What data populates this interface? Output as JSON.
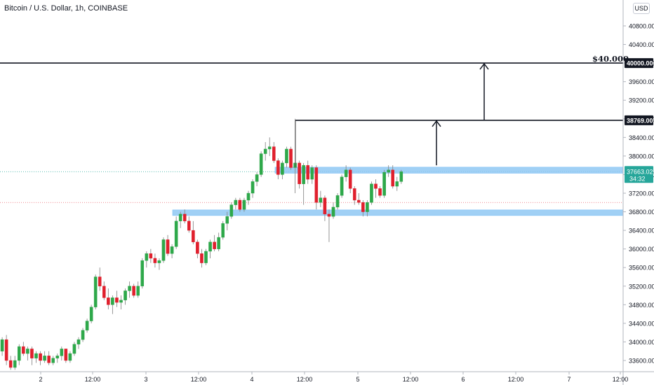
{
  "title": "Bitcoin / U.S. Dollar, 1h, COINBASE",
  "currency": "USD",
  "target_label": "$40.000",
  "price_labels": {
    "target": "40000.00",
    "breakout": "38769.00",
    "last": "37663.02",
    "countdown": "34:32"
  },
  "colors": {
    "up": "#26a69a",
    "up_body": "#2ea84a",
    "down": "#e0202d",
    "zone": "#90c8f4",
    "zone_border": "#64b5f6",
    "line": "#131722",
    "grid_text": "#131722"
  },
  "chart_data": {
    "type": "candlestick",
    "title": "Bitcoin / U.S. Dollar, 1h, COINBASE",
    "ylim": [
      33400,
      41600
    ],
    "y_ticks": [
      33600,
      34000,
      34400,
      34800,
      35200,
      35600,
      36000,
      36400,
      36800,
      37200,
      37600,
      38000,
      38400,
      38800,
      39200,
      39600,
      40000,
      40400,
      40800
    ],
    "x_ticks": [
      "2",
      "12:00",
      "3",
      "12:00",
      "4",
      "12:00",
      "5",
      "12:00",
      "6",
      "12:00",
      "7",
      "12:00"
    ],
    "candles": [
      [
        33800,
        34100,
        33700,
        34050
      ],
      [
        34050,
        34150,
        33500,
        33600
      ],
      [
        33600,
        33700,
        33400,
        33450
      ],
      [
        33450,
        33700,
        33400,
        33600
      ],
      [
        33600,
        33950,
        33500,
        33900
      ],
      [
        33900,
        34000,
        33700,
        33750
      ],
      [
        33750,
        33900,
        33600,
        33850
      ],
      [
        33850,
        33900,
        33500,
        33650
      ],
      [
        33650,
        33800,
        33550,
        33750
      ],
      [
        33750,
        33800,
        33500,
        33600
      ],
      [
        33600,
        33800,
        33550,
        33700
      ],
      [
        33700,
        33800,
        33500,
        33550
      ],
      [
        33550,
        33700,
        33500,
        33650
      ],
      [
        33650,
        33750,
        33550,
        33700
      ],
      [
        33700,
        33900,
        33600,
        33850
      ],
      [
        33850,
        33850,
        33550,
        33600
      ],
      [
        33600,
        33800,
        33550,
        33750
      ],
      [
        33750,
        34000,
        33700,
        33950
      ],
      [
        33950,
        34100,
        33850,
        34050
      ],
      [
        34050,
        34300,
        34000,
        34250
      ],
      [
        34250,
        34500,
        34200,
        34450
      ],
      [
        34450,
        34800,
        34400,
        34750
      ],
      [
        34750,
        35450,
        34700,
        35400
      ],
      [
        35400,
        35600,
        35100,
        35200
      ],
      [
        35200,
        35300,
        34900,
        34950
      ],
      [
        34950,
        35150,
        34700,
        34800
      ],
      [
        34800,
        35000,
        34600,
        34950
      ],
      [
        34950,
        35100,
        34750,
        34850
      ],
      [
        34850,
        35000,
        34700,
        34900
      ],
      [
        34900,
        35150,
        34800,
        35100
      ],
      [
        35100,
        35300,
        34950,
        35200
      ],
      [
        35200,
        35250,
        34950,
        35000
      ],
      [
        35000,
        35300,
        34950,
        35200
      ],
      [
        35200,
        35800,
        35150,
        35750
      ],
      [
        35750,
        35950,
        35600,
        35900
      ],
      [
        35900,
        36000,
        35700,
        35800
      ],
      [
        35800,
        35900,
        35600,
        35700
      ],
      [
        35700,
        35800,
        35550,
        35750
      ],
      [
        35750,
        36250,
        35700,
        36200
      ],
      [
        36200,
        36300,
        35850,
        35900
      ],
      [
        35900,
        36100,
        35800,
        36050
      ],
      [
        36050,
        36700,
        36000,
        36600
      ],
      [
        36600,
        36800,
        36450,
        36750
      ],
      [
        36750,
        36850,
        36550,
        36600
      ],
      [
        36600,
        36700,
        36350,
        36400
      ],
      [
        36400,
        36600,
        36100,
        36150
      ],
      [
        36150,
        36200,
        35800,
        35900
      ],
      [
        35900,
        36000,
        35600,
        35700
      ],
      [
        35700,
        36000,
        35650,
        35950
      ],
      [
        35950,
        36200,
        35800,
        36150
      ],
      [
        36150,
        36300,
        35950,
        36000
      ],
      [
        36000,
        36350,
        35950,
        36250
      ],
      [
        36250,
        36600,
        36200,
        36550
      ],
      [
        36550,
        36800,
        36400,
        36700
      ],
      [
        36700,
        37000,
        36650,
        36950
      ],
      [
        36950,
        37100,
        36850,
        37050
      ],
      [
        37050,
        37100,
        36800,
        36850
      ],
      [
        36850,
        37100,
        36800,
        37050
      ],
      [
        37050,
        37250,
        36950,
        37200
      ],
      [
        37200,
        37500,
        37100,
        37450
      ],
      [
        37450,
        37650,
        37350,
        37600
      ],
      [
        37600,
        38100,
        37550,
        38050
      ],
      [
        38050,
        38300,
        37900,
        38150
      ],
      [
        38150,
        38400,
        38000,
        38200
      ],
      [
        38200,
        38300,
        37850,
        37900
      ],
      [
        37900,
        37950,
        37500,
        37600
      ],
      [
        37600,
        37900,
        37500,
        37850
      ],
      [
        37850,
        38200,
        37750,
        38150
      ],
      [
        38150,
        38200,
        37700,
        37750
      ],
      [
        37750,
        38800,
        37200,
        37850
      ],
      [
        37850,
        37900,
        37300,
        37400
      ],
      [
        37400,
        37850,
        36950,
        37800
      ],
      [
        37800,
        37900,
        37400,
        37500
      ],
      [
        37500,
        37800,
        37400,
        37750
      ],
      [
        37750,
        37800,
        36850,
        37000
      ],
      [
        37000,
        37250,
        36900,
        37100
      ],
      [
        37100,
        37150,
        36600,
        36750
      ],
      [
        36750,
        36850,
        36150,
        36700
      ],
      [
        36700,
        37000,
        36650,
        36900
      ],
      [
        36900,
        37200,
        36850,
        37150
      ],
      [
        37150,
        37600,
        37100,
        37550
      ],
      [
        37550,
        37800,
        37450,
        37700
      ],
      [
        37700,
        37750,
        37200,
        37300
      ],
      [
        37300,
        37350,
        36950,
        37050
      ],
      [
        37050,
        37200,
        36950,
        37000
      ],
      [
        37000,
        37050,
        36700,
        36800
      ],
      [
        36800,
        37050,
        36700,
        37000
      ],
      [
        37000,
        37450,
        36950,
        37400
      ],
      [
        37400,
        37500,
        37100,
        37300
      ],
      [
        37300,
        37350,
        37100,
        37150
      ],
      [
        37150,
        37700,
        37100,
        37650
      ],
      [
        37650,
        37800,
        37550,
        37700
      ],
      [
        37700,
        37800,
        37300,
        37350
      ],
      [
        37350,
        37550,
        37250,
        37450
      ],
      [
        37450,
        37700,
        37400,
        37663.02
      ]
    ],
    "lines": [
      {
        "label": "$40.000",
        "value": 40000
      },
      {
        "label": "38769.00",
        "value": 38769
      }
    ],
    "zones": [
      [
        37630,
        37760
      ],
      [
        36720,
        36840
      ]
    ]
  }
}
